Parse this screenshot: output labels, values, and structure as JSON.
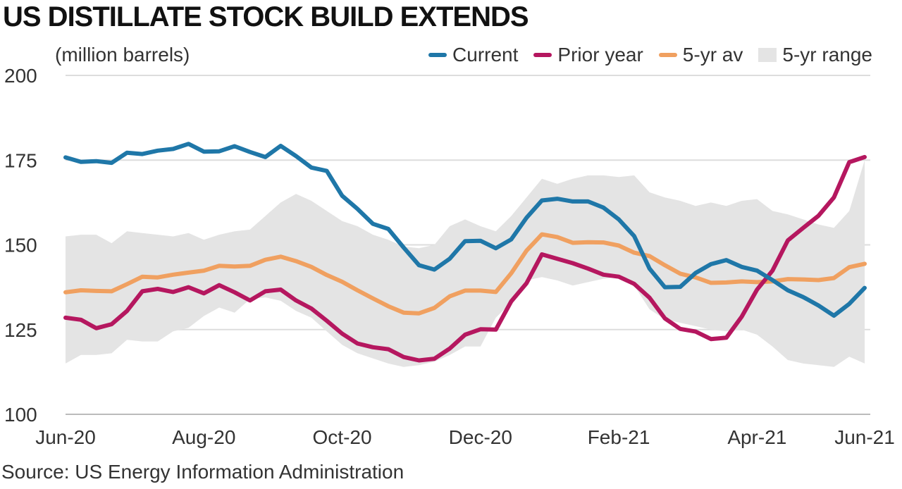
{
  "title": "US DISTILLATE STOCK BUILD EXTENDS",
  "source": "Source: US Energy Information Administration",
  "colors": {
    "current": "#1f77a8",
    "prior": "#b5175f",
    "avg": "#f0a060",
    "range": "#e4e4e4",
    "grid": "#dddddd"
  },
  "legend": [
    {
      "key": "current",
      "label": "Current"
    },
    {
      "key": "prior",
      "label": "Prior year"
    },
    {
      "key": "avg",
      "label": "5-yr av"
    },
    {
      "key": "range",
      "label": "5-yr range"
    }
  ],
  "chart_data": {
    "type": "line",
    "ylabel": "(million barrels)",
    "ylim": [
      100,
      200
    ],
    "yticks": [
      100,
      125,
      150,
      175,
      200
    ],
    "xticks": [
      "Jun-20",
      "Aug-20",
      "Oct-20",
      "Dec-20",
      "Feb-21",
      "Apr-21",
      "Jun-21"
    ],
    "x_weeks": 53,
    "grid": true,
    "legend_position": "top-right",
    "series": [
      {
        "name": "Current",
        "key": "current",
        "values": [
          175.8,
          174.5,
          174.7,
          174.2,
          177.2,
          176.8,
          177.8,
          178.3,
          179.8,
          177.5,
          177.6,
          179.1,
          177.4,
          175.9,
          179.2,
          176.2,
          172.8,
          171.8,
          164.5,
          160.6,
          156.2,
          154.7,
          149.2,
          144.0,
          142.7,
          145.9,
          151.1,
          151.2,
          149.0,
          151.6,
          158.0,
          163.1,
          163.6,
          162.8,
          162.8,
          161.0,
          157.5,
          152.6,
          143.0,
          137.5,
          137.6,
          141.7,
          144.3,
          145.5,
          143.5,
          142.4,
          139.6,
          136.6,
          134.6,
          132.1,
          129.1,
          132.6,
          137.3
        ]
      },
      {
        "name": "Prior year",
        "key": "prior",
        "values": [
          128.5,
          127.9,
          125.4,
          126.6,
          130.5,
          136.3,
          137.0,
          136.1,
          137.5,
          135.7,
          138.1,
          136.0,
          133.6,
          136.3,
          136.8,
          133.6,
          131.2,
          127.6,
          123.8,
          120.9,
          119.8,
          119.2,
          116.9,
          115.9,
          116.4,
          119.4,
          123.5,
          125.1,
          125.0,
          133.3,
          138.7,
          147.2,
          145.9,
          144.6,
          143.0,
          141.2,
          140.6,
          138.5,
          134.4,
          128.3,
          125.2,
          124.4,
          122.2,
          122.6,
          128.8,
          136.8,
          142.4,
          151.3,
          155.0,
          158.6,
          164.0,
          174.4,
          175.9
        ]
      },
      {
        "name": "5-yr av",
        "key": "avg",
        "values": [
          136.0,
          136.6,
          136.4,
          136.3,
          138.4,
          140.6,
          140.4,
          141.2,
          141.8,
          142.4,
          143.8,
          143.6,
          143.8,
          145.6,
          146.5,
          145.2,
          143.5,
          141.1,
          139.1,
          136.6,
          134.2,
          131.9,
          130.0,
          129.8,
          131.4,
          134.8,
          136.5,
          136.5,
          136.1,
          141.6,
          148.3,
          153.1,
          152.3,
          150.6,
          150.8,
          150.7,
          149.8,
          147.7,
          146.7,
          144.0,
          141.5,
          140.4,
          138.8,
          138.9,
          139.2,
          139.0,
          139.2,
          139.9,
          139.8,
          139.6,
          140.2,
          143.4,
          144.4
        ]
      },
      {
        "name": "5-yr range",
        "key": "range",
        "upper": [
          152.5,
          153.0,
          153.0,
          150.5,
          154.0,
          153.5,
          153.0,
          152.5,
          153.5,
          151.5,
          153.0,
          154.0,
          154.5,
          158.5,
          162.5,
          165.0,
          163.0,
          160.0,
          157.0,
          155.5,
          153.0,
          151.5,
          149.5,
          149.0,
          150.0,
          155.5,
          157.5,
          155.5,
          154.0,
          158.5,
          164.0,
          169.5,
          168.0,
          169.5,
          170.5,
          170.5,
          170.0,
          170.5,
          165.5,
          164.0,
          163.0,
          161.5,
          162.5,
          161.5,
          163.0,
          163.5,
          160.0,
          159.0,
          157.5,
          156.0,
          155.0,
          160.0,
          175.0
        ],
        "lower": [
          115.0,
          117.5,
          117.5,
          118.0,
          122.0,
          121.5,
          121.5,
          124.5,
          125.5,
          129.0,
          131.5,
          130.0,
          134.0,
          134.5,
          133.5,
          130.5,
          128.5,
          124.5,
          120.5,
          118.0,
          116.5,
          115.0,
          114.0,
          114.5,
          115.5,
          117.5,
          120.0,
          120.0,
          128.5,
          133.0,
          139.5,
          140.5,
          139.5,
          138.0,
          139.0,
          140.0,
          140.5,
          138.0,
          131.0,
          128.0,
          127.0,
          126.0,
          125.0,
          124.5,
          125.0,
          123.5,
          120.0,
          116.0,
          115.0,
          114.5,
          114.0,
          117.0,
          115.0
        ]
      }
    ]
  }
}
